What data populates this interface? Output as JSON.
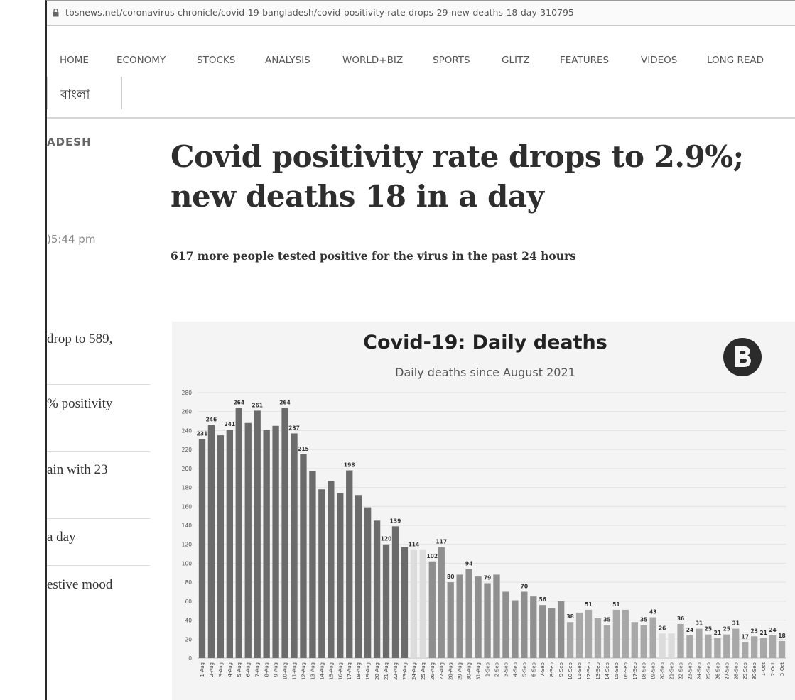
{
  "browser": {
    "url": "tbsnews.net/coronavirus-chronicle/covid-19-bangladesh/covid-positivity-rate-drops-29-new-deaths-18-day-310795"
  },
  "nav": {
    "items": [
      "HOME",
      "ECONOMY",
      "STOCKS",
      "ANALYSIS",
      "WORLD+BIZ",
      "SPORTS",
      "GLITZ",
      "FEATURES",
      "VIDEOS",
      "LONG READ"
    ],
    "bangla": "বাংলা"
  },
  "sidebar": {
    "section": "ADESH",
    "time": ")5:44 pm",
    "related": [
      "drop to 589,",
      "% positivity",
      "ain with 23",
      "a day",
      "estive mood"
    ]
  },
  "article": {
    "headline": "Covid positivity rate drops to 2.9%; new deaths 18 in a day",
    "subhead": "617 more people tested positive for the virus in the past 24 hours"
  },
  "chart_data": {
    "type": "bar",
    "title": "Covid-19: Daily deaths",
    "subtitle": "Daily deaths since August 2021",
    "ylim": [
      0,
      280
    ],
    "yticks": [
      0,
      20,
      40,
      60,
      80,
      100,
      120,
      140,
      160,
      180,
      200,
      220,
      240,
      260,
      280
    ],
    "categories": [
      "1-Aug",
      "2-Aug",
      "3-Aug",
      "4-Aug",
      "5-Aug",
      "6-Aug",
      "7-Aug",
      "8-Aug",
      "9-Aug",
      "10-Aug",
      "11-Aug",
      "12-Aug",
      "13-Aug",
      "14-Aug",
      "15-Aug",
      "16-Aug",
      "17-Aug",
      "18-Aug",
      "19-Aug",
      "20-Aug",
      "21-Aug",
      "22-Aug",
      "23-Aug",
      "24-Aug",
      "25-Aug",
      "26-Aug",
      "27-Aug",
      "28-Aug",
      "29-Aug",
      "30-Aug",
      "31-Aug",
      "1-Sep",
      "2-Sep",
      "3-Sep",
      "4-Sep",
      "5-Sep",
      "6-Sep",
      "7-Sep",
      "8-Sep",
      "9-Sep",
      "10-Sep",
      "11-Sep",
      "12-Sep",
      "13-Sep",
      "14-Sep",
      "15-Sep",
      "16-Sep",
      "17-Sep",
      "18-Sep",
      "19-Sep",
      "20-Sep",
      "21-Sep",
      "22-Sep",
      "23-Sep",
      "24-Sep",
      "25-Sep",
      "26-Sep",
      "27-Sep",
      "28-Sep",
      "29-Sep",
      "30-Sep",
      "1-Oct",
      "2-Oct",
      "3-Oct"
    ],
    "values": [
      231,
      246,
      235,
      241,
      264,
      248,
      261,
      241,
      245,
      264,
      237,
      215,
      197,
      178,
      187,
      174,
      198,
      172,
      159,
      145,
      120,
      139,
      117,
      114,
      114,
      102,
      117,
      80,
      88,
      94,
      86,
      79,
      88,
      70,
      61,
      70,
      65,
      56,
      53,
      60,
      38,
      48,
      51,
      42,
      35,
      51,
      51,
      38,
      35,
      43,
      26,
      26,
      36,
      24,
      31,
      25,
      21,
      25,
      31,
      17,
      23,
      21,
      24,
      18
    ],
    "labels": {
      "0": "231",
      "1": "246",
      "3": "241",
      "4": "264",
      "6": "261",
      "9": "264",
      "10": "237",
      "11": "215",
      "16": "198",
      "21": "139",
      "20": "120",
      "23": "114",
      "25": "102",
      "26": "117",
      "27": "80",
      "29": "94",
      "31": "79",
      "35": "70",
      "37": "56",
      "42": "51",
      "40": "38",
      "44": "35",
      "45": "51",
      "48": "35",
      "49": "43",
      "50": "26",
      "52": "36",
      "53": "24",
      "54": "31",
      "55": "25",
      "56": "21",
      "57": "25",
      "58": "31",
      "59": "17",
      "60": "23",
      "61": "21",
      "62": "24",
      "63": "18"
    },
    "highlight_indices": [
      23,
      24,
      50,
      51
    ],
    "colors": {
      "dark": "#6b6b6b",
      "mid": "#8f8f8f",
      "light": "#a8a8a8",
      "highlight": "#dcdcdc"
    },
    "grid": true,
    "logo": "TBS"
  }
}
